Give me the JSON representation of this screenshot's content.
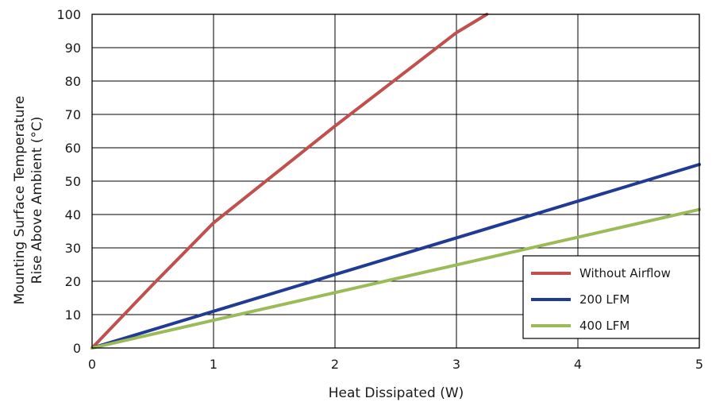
{
  "chart_data": {
    "type": "line",
    "title": "",
    "xlabel": "Heat Dissipated (W)",
    "ylabel_lines": [
      "Mounting Surface Temperature",
      "Rise Above  Ambient (°C)"
    ],
    "xlim": [
      0,
      5
    ],
    "ylim": [
      0,
      100
    ],
    "x_ticks": [
      0,
      1,
      2,
      3,
      4,
      5
    ],
    "y_ticks": [
      0,
      10,
      20,
      30,
      40,
      50,
      60,
      70,
      80,
      90,
      100
    ],
    "grid": true,
    "legend_position": "bottom-right",
    "series": [
      {
        "name": "Without Airflow",
        "color": "#c0504d",
        "points": [
          [
            0,
            0
          ],
          [
            0.5,
            19
          ],
          [
            1,
            37.5
          ],
          [
            1.5,
            52
          ],
          [
            2,
            66.5
          ],
          [
            2.5,
            80.5
          ],
          [
            3,
            94.5
          ],
          [
            3.25,
            100
          ]
        ]
      },
      {
        "name": "200 LFM",
        "color": "#1f3b94",
        "points": [
          [
            0,
            0
          ],
          [
            1,
            11
          ],
          [
            2,
            22
          ],
          [
            3,
            33
          ],
          [
            4,
            44
          ],
          [
            5,
            55
          ]
        ]
      },
      {
        "name": "400 LFM",
        "color": "#9bbb59",
        "points": [
          [
            0,
            0
          ],
          [
            1,
            8.3
          ],
          [
            2,
            16.6
          ],
          [
            3,
            24.9
          ],
          [
            4,
            33.2
          ],
          [
            5,
            41.5
          ]
        ]
      }
    ]
  }
}
